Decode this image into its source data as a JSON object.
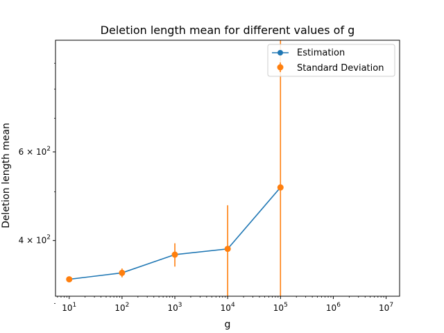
{
  "chart_data": {
    "type": "line",
    "title": "Deletion length mean for different values of g",
    "xlabel": "g",
    "ylabel": "Deletion length mean",
    "xscale": "log",
    "yscale": "log",
    "xlim": [
      5.5,
      18000000
    ],
    "ylim": [
      310,
      1000
    ],
    "x_ticks": [
      {
        "value": 10,
        "base": "10",
        "exp": "1"
      },
      {
        "value": 100,
        "base": "10",
        "exp": "2"
      },
      {
        "value": 1000,
        "base": "10",
        "exp": "3"
      },
      {
        "value": 10000,
        "base": "10",
        "exp": "4"
      },
      {
        "value": 100000,
        "base": "10",
        "exp": "5"
      },
      {
        "value": 1000000,
        "base": "10",
        "exp": "6"
      },
      {
        "value": 10000000,
        "base": "10",
        "exp": "7"
      }
    ],
    "y_ticks": [
      {
        "value": 400,
        "coef": "4",
        "base": "10",
        "exp": "2"
      },
      {
        "value": 600,
        "coef": "6",
        "base": "10",
        "exp": "2"
      }
    ],
    "y_minor_ticks": [
      300,
      500,
      700,
      800,
      900
    ],
    "series": [
      {
        "name": "Estimation",
        "kind": "line",
        "color": "#1f77b4",
        "x": [
          10,
          100,
          1000,
          10000,
          100000
        ],
        "y": [
          335,
          345,
          375,
          385,
          510
        ]
      },
      {
        "name": "Standard Deviation",
        "kind": "errorbar",
        "color": "#ff7f0e",
        "x": [
          10,
          100,
          1000,
          10000,
          100000
        ],
        "y": [
          335,
          345,
          375,
          385,
          510
        ],
        "err": [
          3,
          7,
          20,
          85,
          500
        ]
      }
    ],
    "legend": {
      "placement": "upper right"
    },
    "grid": false
  }
}
